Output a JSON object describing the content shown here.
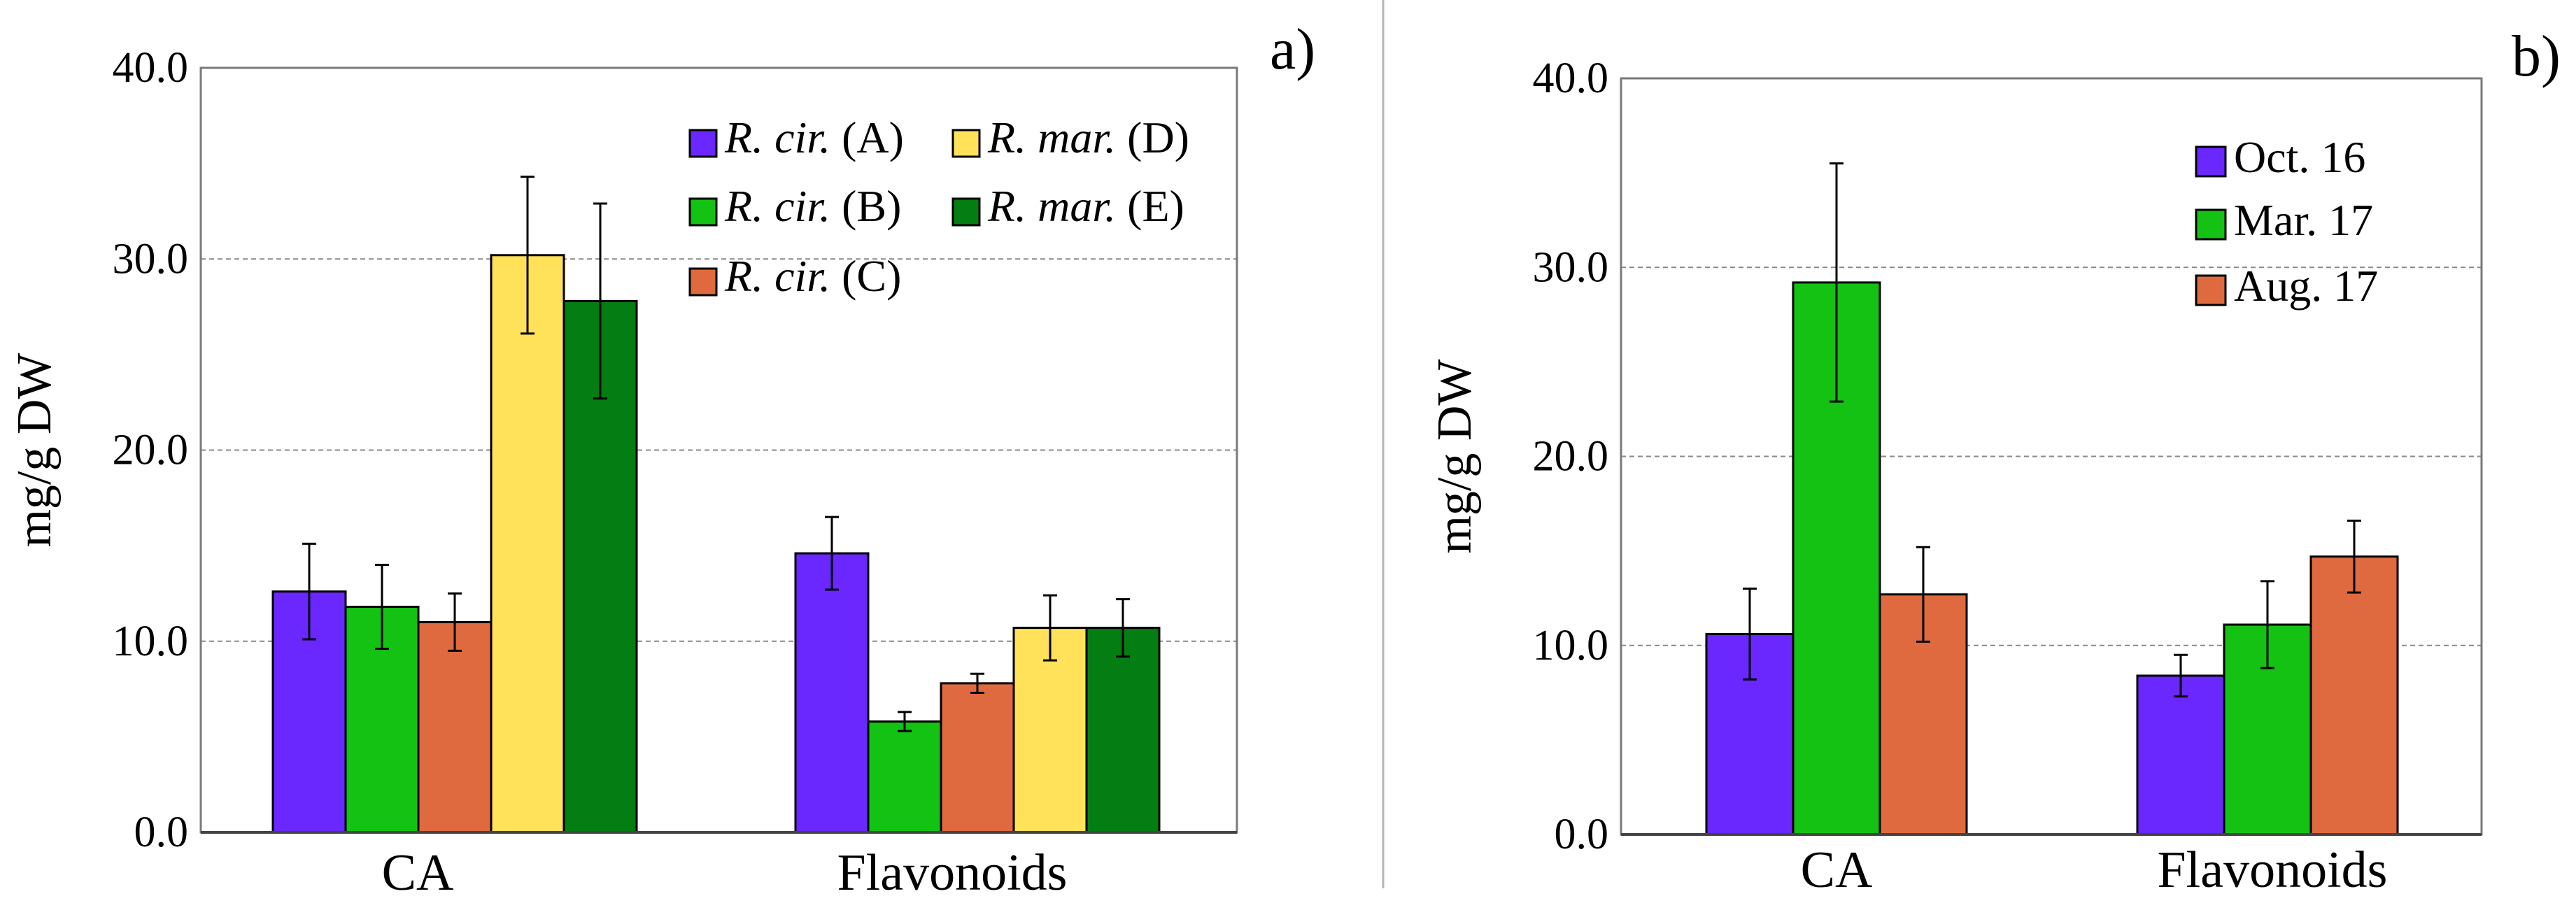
{
  "chart_data": [
    {
      "type": "bar",
      "panel_label": "a)",
      "ylabel": "mg/g DW",
      "ylim": [
        0,
        40
      ],
      "yticks": [
        "0.0",
        "10.0",
        "20.0",
        "30.0",
        "40.0"
      ],
      "grid": "horizontal dashed",
      "legend_position": "top-right",
      "categories": [
        "CA",
        "Flavonoids"
      ],
      "series": [
        {
          "name_italic": "R. cir.",
          "name_suffix": " (A)",
          "color": "#6a28ff",
          "values": [
            12.6,
            14.6
          ],
          "errors": [
            2.5,
            1.9
          ]
        },
        {
          "name_italic": "R. cir.",
          "name_suffix": " (B)",
          "color": "#14c214",
          "values": [
            11.8,
            5.8
          ],
          "errors": [
            2.2,
            0.5
          ]
        },
        {
          "name_italic": "R. cir.",
          "name_suffix": " (C)",
          "color": "#e06a40",
          "values": [
            11.0,
            7.8
          ],
          "errors": [
            1.5,
            0.5
          ]
        },
        {
          "name_italic": "R. mar.",
          "name_suffix": " (D)",
          "color": "#ffe15a",
          "values": [
            30.2,
            10.7
          ],
          "errors": [
            4.1,
            1.7
          ]
        },
        {
          "name_italic": "R. mar.",
          "name_suffix": " (E)",
          "color": "#047d12",
          "values": [
            27.8,
            10.7
          ],
          "errors": [
            5.1,
            1.5
          ]
        }
      ]
    },
    {
      "type": "bar",
      "panel_label": "b)",
      "ylabel": "mg/g DW",
      "ylim": [
        0,
        40
      ],
      "yticks": [
        "0.0",
        "10.0",
        "20.0",
        "30.0",
        "40.0"
      ],
      "grid": "horizontal dashed",
      "legend_position": "top-right",
      "categories": [
        "CA",
        "Flavonoids"
      ],
      "series": [
        {
          "name": "Oct. 16",
          "color": "#6a28ff",
          "values": [
            10.6,
            8.4
          ],
          "errors": [
            2.4,
            1.1
          ]
        },
        {
          "name": "Mar. 17",
          "color": "#14c214",
          "values": [
            29.2,
            11.1
          ],
          "errors": [
            6.3,
            2.3
          ]
        },
        {
          "name": "Aug. 17",
          "color": "#e06a40",
          "values": [
            12.7,
            14.7
          ],
          "errors": [
            2.5,
            1.9
          ]
        }
      ]
    }
  ]
}
